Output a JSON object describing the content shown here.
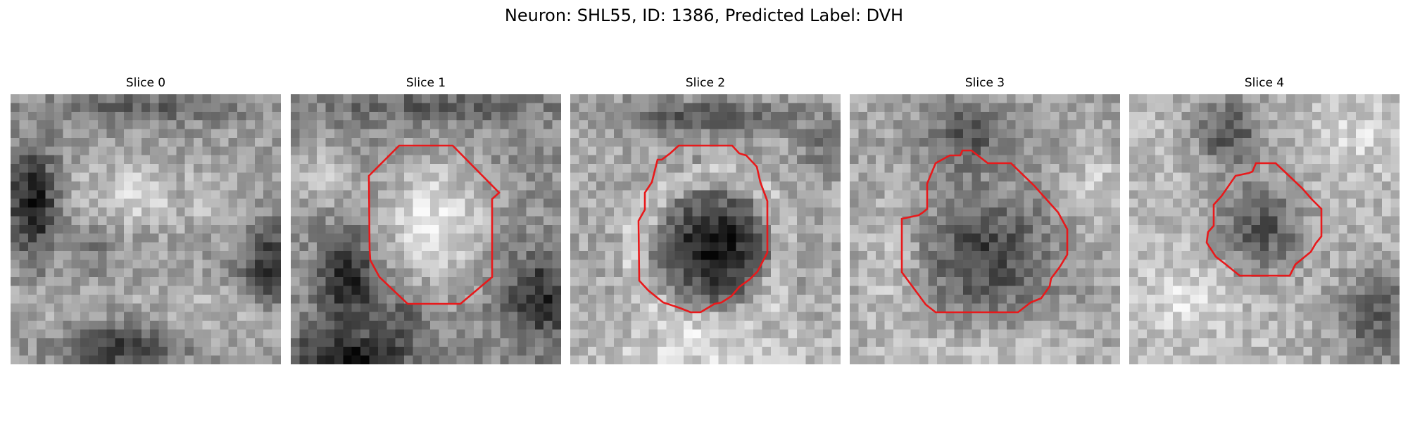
{
  "figure": {
    "title": "Neuron: SHL55, ID: 1386, Predicted Label: DVH",
    "contour_color": "#e8191b",
    "colormap": "gray"
  },
  "panels": [
    {
      "title": "Slice 0",
      "has_contour": false
    },
    {
      "title": "Slice 1",
      "has_contour": true
    },
    {
      "title": "Slice 2",
      "has_contour": true
    },
    {
      "title": "Slice 3",
      "has_contour": true
    },
    {
      "title": "Slice 4",
      "has_contour": true
    }
  ]
}
